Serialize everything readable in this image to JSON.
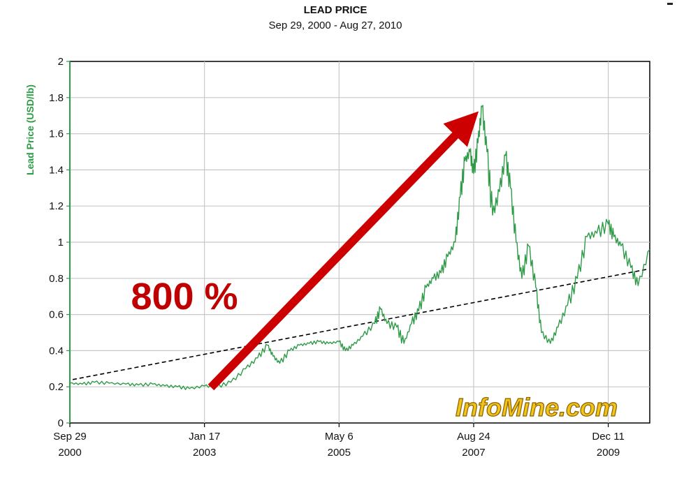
{
  "chart_data": {
    "type": "line",
    "title": "LEAD PRICE",
    "subtitle": "Sep 29, 2000 - Aug 27, 2010",
    "ylabel": "Lead Price (USD/lb)",
    "xlabel": "",
    "ylim": [
      0,
      2
    ],
    "xlim": [
      "2000-09-29",
      "2010-08-27"
    ],
    "yticks": [
      "0",
      "0.2",
      "0.4",
      "0.6",
      "0.8",
      "1",
      "1.2",
      "1.4",
      "1.6",
      "1.8",
      "2"
    ],
    "xticks": [
      {
        "date": "2000-09-29",
        "line1": "Sep 29",
        "line2": "2000"
      },
      {
        "date": "2003-01-17",
        "line1": "Jan 17",
        "line2": "2003"
      },
      {
        "date": "2005-05-06",
        "line1": "May 6",
        "line2": "2005"
      },
      {
        "date": "2007-08-24",
        "line1": "Aug 24",
        "line2": "2007"
      },
      {
        "date": "2009-12-11",
        "line1": "Dec 11",
        "line2": "2009"
      }
    ],
    "grid": true,
    "series": [
      {
        "color": "#2e9b47",
        "points": [
          [
            "2000-09-29",
            0.22
          ],
          [
            "2000-12-15",
            0.215
          ],
          [
            "2001-03-01",
            0.225
          ],
          [
            "2001-06-01",
            0.22
          ],
          [
            "2001-09-15",
            0.215
          ],
          [
            "2001-12-01",
            0.21
          ],
          [
            "2002-03-01",
            0.215
          ],
          [
            "2002-05-15",
            0.205
          ],
          [
            "2002-08-01",
            0.2
          ],
          [
            "2002-10-15",
            0.19
          ],
          [
            "2003-01-17",
            0.205
          ],
          [
            "2003-04-01",
            0.2
          ],
          [
            "2003-07-01",
            0.225
          ],
          [
            "2003-10-01",
            0.3
          ],
          [
            "2003-12-15",
            0.36
          ],
          [
            "2004-02-15",
            0.43
          ],
          [
            "2004-03-20",
            0.37
          ],
          [
            "2004-05-01",
            0.33
          ],
          [
            "2004-07-01",
            0.4
          ],
          [
            "2004-09-01",
            0.43
          ],
          [
            "2004-11-01",
            0.44
          ],
          [
            "2005-01-01",
            0.45
          ],
          [
            "2005-03-01",
            0.44
          ],
          [
            "2005-05-06",
            0.45
          ],
          [
            "2005-06-15",
            0.4
          ],
          [
            "2005-08-01",
            0.43
          ],
          [
            "2005-10-01",
            0.48
          ],
          [
            "2005-12-15",
            0.55
          ],
          [
            "2006-01-20",
            0.63
          ],
          [
            "2006-03-01",
            0.55
          ],
          [
            "2006-05-01",
            0.53
          ],
          [
            "2006-06-15",
            0.44
          ],
          [
            "2006-08-01",
            0.55
          ],
          [
            "2006-09-15",
            0.62
          ],
          [
            "2006-11-01",
            0.75
          ],
          [
            "2006-12-15",
            0.8
          ],
          [
            "2007-02-01",
            0.83
          ],
          [
            "2007-03-15",
            0.92
          ],
          [
            "2007-05-01",
            1.0
          ],
          [
            "2007-06-01",
            1.25
          ],
          [
            "2007-07-01",
            1.45
          ],
          [
            "2007-08-01",
            1.5
          ],
          [
            "2007-08-24",
            1.38
          ],
          [
            "2007-09-20",
            1.55
          ],
          [
            "2007-10-15",
            1.75
          ],
          [
            "2007-11-15",
            1.5
          ],
          [
            "2007-12-20",
            1.15
          ],
          [
            "2008-02-01",
            1.28
          ],
          [
            "2008-03-10",
            1.48
          ],
          [
            "2008-04-10",
            1.3
          ],
          [
            "2008-05-15",
            1.0
          ],
          [
            "2008-06-20",
            0.8
          ],
          [
            "2008-08-01",
            0.98
          ],
          [
            "2008-09-15",
            0.75
          ],
          [
            "2008-10-20",
            0.5
          ],
          [
            "2008-12-15",
            0.44
          ],
          [
            "2009-02-01",
            0.53
          ],
          [
            "2009-04-01",
            0.65
          ],
          [
            "2009-06-01",
            0.8
          ],
          [
            "2009-08-01",
            1.03
          ],
          [
            "2009-10-01",
            1.05
          ],
          [
            "2009-12-11",
            1.1
          ],
          [
            "2010-01-15",
            1.03
          ],
          [
            "2010-03-01",
            0.98
          ],
          [
            "2010-05-01",
            0.86
          ],
          [
            "2010-06-15",
            0.76
          ],
          [
            "2010-08-27",
            0.96
          ]
        ]
      }
    ],
    "annotations": {
      "percent_label": "800 %",
      "watermark": "InfoMine.com"
    }
  }
}
